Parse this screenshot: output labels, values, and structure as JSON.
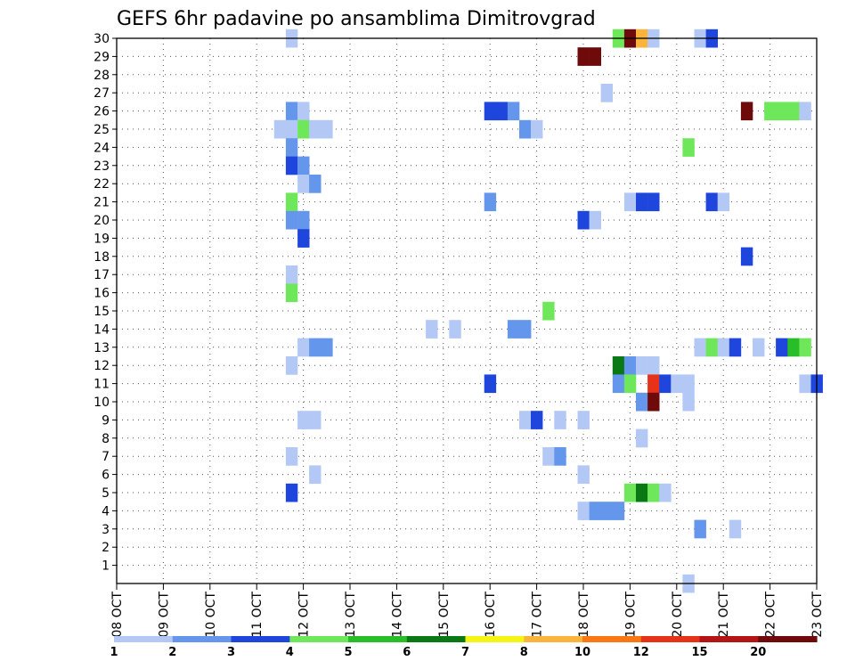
{
  "chart_data": {
    "type": "heatmap",
    "title": "GEFS 6hr padavine po ansamblima Dimitrovgrad",
    "xlabel": "",
    "ylabel": "",
    "x_tick_labels": [
      "08 OCT",
      "09 OCT",
      "10 OCT",
      "11 OCT",
      "12 OCT",
      "13 OCT",
      "14 OCT",
      "15 OCT",
      "16 OCT",
      "17 OCT",
      "18 OCT",
      "19 OCT",
      "20 OCT",
      "21 OCT",
      "22 OCT",
      "23 OCT"
    ],
    "x_unit": "days since 08 OCT 00Z",
    "xlim": [
      0,
      15
    ],
    "y_tick_labels": [
      "1",
      "2",
      "3",
      "4",
      "5",
      "6",
      "7",
      "8",
      "9",
      "10",
      "11",
      "12",
      "13",
      "14",
      "15",
      "16",
      "17",
      "18",
      "19",
      "20",
      "21",
      "22",
      "23",
      "24",
      "25",
      "26",
      "27",
      "28",
      "29",
      "30"
    ],
    "ylim": [
      0,
      30
    ],
    "grid": true,
    "colorbar": {
      "position": "bottom",
      "labels": [
        "1",
        "2",
        "3",
        "4",
        "5",
        "6",
        "7",
        "8",
        "10",
        "12",
        "15",
        "20"
      ],
      "colors": [
        "#b4c8f5",
        "#6496eb",
        "#1e46dc",
        "#6ee85a",
        "#28be28",
        "#0a7814",
        "#f5f514",
        "#fab43c",
        "#fa7814",
        "#e63219",
        "#b41414",
        "#6e0a0a"
      ]
    },
    "cells": [
      [
        30,
        3.75,
        1
      ],
      [
        30,
        10.75,
        4
      ],
      [
        30,
        11.0,
        20
      ],
      [
        30,
        11.25,
        8
      ],
      [
        30,
        11.5,
        1
      ],
      [
        30,
        12.5,
        1
      ],
      [
        30,
        12.75,
        3
      ],
      [
        29,
        10.0,
        20
      ],
      [
        29,
        10.25,
        15
      ],
      [
        27,
        10.5,
        1
      ],
      [
        26,
        3.75,
        2
      ],
      [
        26,
        4.0,
        1
      ],
      [
        26,
        8.0,
        3
      ],
      [
        26,
        8.25,
        3
      ],
      [
        26,
        8.5,
        2
      ],
      [
        26,
        13.5,
        15
      ],
      [
        26,
        14.0,
        4
      ],
      [
        26,
        14.25,
        4
      ],
      [
        26,
        14.5,
        4
      ],
      [
        26,
        14.75,
        1
      ],
      [
        25,
        3.5,
        1
      ],
      [
        25,
        3.75,
        1
      ],
      [
        25,
        4.0,
        4
      ],
      [
        25,
        4.25,
        1
      ],
      [
        25,
        4.5,
        1
      ],
      [
        25,
        8.75,
        2
      ],
      [
        25,
        9.0,
        1
      ],
      [
        24,
        3.75,
        2
      ],
      [
        24,
        12.25,
        4
      ],
      [
        23,
        3.75,
        3
      ],
      [
        23,
        4.0,
        2
      ],
      [
        22,
        4.0,
        1
      ],
      [
        22,
        4.25,
        2
      ],
      [
        21,
        3.75,
        4
      ],
      [
        21,
        8.0,
        2
      ],
      [
        21,
        11.0,
        1
      ],
      [
        21,
        11.25,
        3
      ],
      [
        21,
        11.5,
        3
      ],
      [
        21,
        12.75,
        3
      ],
      [
        21,
        13.0,
        1
      ],
      [
        20,
        3.75,
        2
      ],
      [
        20,
        4.0,
        2
      ],
      [
        20,
        10.0,
        3
      ],
      [
        20,
        10.25,
        1
      ],
      [
        19,
        4.0,
        3
      ],
      [
        18,
        13.5,
        3
      ],
      [
        17,
        3.75,
        1
      ],
      [
        16,
        3.75,
        4
      ],
      [
        15,
        9.25,
        4
      ],
      [
        14,
        6.75,
        1
      ],
      [
        14,
        7.25,
        1
      ],
      [
        14,
        8.5,
        2
      ],
      [
        14,
        8.75,
        2
      ],
      [
        13,
        4.0,
        1
      ],
      [
        13,
        4.25,
        2
      ],
      [
        13,
        4.5,
        2
      ],
      [
        13,
        12.5,
        1
      ],
      [
        13,
        12.75,
        4
      ],
      [
        13,
        13.0,
        1
      ],
      [
        13,
        13.25,
        3
      ],
      [
        13,
        13.75,
        1
      ],
      [
        13,
        14.25,
        3
      ],
      [
        13,
        14.5,
        5
      ],
      [
        13,
        14.75,
        4
      ],
      [
        12,
        3.75,
        1
      ],
      [
        12,
        10.75,
        6
      ],
      [
        12,
        11.0,
        2
      ],
      [
        12,
        11.25,
        1
      ],
      [
        12,
        11.5,
        1
      ],
      [
        11,
        8.0,
        3
      ],
      [
        11,
        10.75,
        2
      ],
      [
        11,
        11.0,
        4
      ],
      [
        11,
        11.5,
        10
      ],
      [
        11,
        11.75,
        3
      ],
      [
        11,
        12.0,
        1
      ],
      [
        11,
        12.25,
        1
      ],
      [
        11,
        14.75,
        1
      ],
      [
        11,
        15.0,
        3
      ],
      [
        10,
        11.25,
        2
      ],
      [
        10,
        11.5,
        20
      ],
      [
        10,
        12.25,
        1
      ],
      [
        9,
        4.0,
        1
      ],
      [
        9,
        4.25,
        1
      ],
      [
        9,
        8.75,
        1
      ],
      [
        9,
        9.0,
        3
      ],
      [
        9,
        9.5,
        1
      ],
      [
        9,
        10.0,
        1
      ],
      [
        8,
        11.25,
        1
      ],
      [
        7,
        3.75,
        1
      ],
      [
        7,
        9.25,
        1
      ],
      [
        7,
        9.5,
        2
      ],
      [
        6,
        4.25,
        1
      ],
      [
        6,
        10.0,
        1
      ],
      [
        5,
        3.75,
        3
      ],
      [
        5,
        11.0,
        4
      ],
      [
        5,
        11.25,
        6
      ],
      [
        5,
        11.5,
        4
      ],
      [
        5,
        11.75,
        1
      ],
      [
        4,
        10.0,
        1
      ],
      [
        4,
        10.25,
        2
      ],
      [
        4,
        10.5,
        2
      ],
      [
        4,
        10.75,
        2
      ],
      [
        3,
        12.5,
        2
      ],
      [
        3,
        13.25,
        1
      ],
      [
        0,
        12.25,
        1
      ]
    ]
  }
}
